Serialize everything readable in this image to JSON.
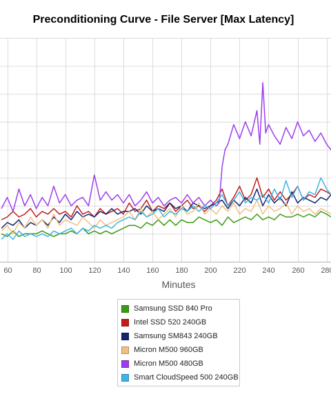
{
  "chart_data": {
    "type": "line",
    "title": "Preconditioning Curve - File Server [Max Latency]",
    "xlabel": "Minutes",
    "ylabel": "",
    "x_ticks": [
      60,
      80,
      100,
      120,
      140,
      160,
      180,
      200,
      220,
      240,
      260,
      280
    ],
    "xlim": [
      55,
      283
    ],
    "ylim": [
      0,
      8
    ],
    "grid": true,
    "legend_position": "bottom-center",
    "series": [
      {
        "name": "Samsung SSD 840 Pro",
        "color": "#3a9a10",
        "x": [
          56,
          60,
          64,
          68,
          72,
          76,
          80,
          84,
          88,
          92,
          96,
          100,
          104,
          108,
          112,
          116,
          120,
          124,
          128,
          132,
          136,
          140,
          144,
          148,
          152,
          156,
          160,
          164,
          168,
          172,
          176,
          180,
          184,
          188,
          192,
          196,
          200,
          204,
          208,
          212,
          216,
          220,
          224,
          228,
          232,
          236,
          240,
          244,
          248,
          252,
          256,
          260,
          264,
          268,
          272,
          276,
          280,
          283
        ],
        "values": [
          1.0,
          0.9,
          1.1,
          0.9,
          1.0,
          1.0,
          1.0,
          1.1,
          1.0,
          0.9,
          1.0,
          1.0,
          1.1,
          1.0,
          1.2,
          1.0,
          1.1,
          1.0,
          1.1,
          1.0,
          1.1,
          1.2,
          1.3,
          1.3,
          1.2,
          1.4,
          1.3,
          1.5,
          1.3,
          1.5,
          1.3,
          1.5,
          1.4,
          1.4,
          1.6,
          1.5,
          1.4,
          1.5,
          1.3,
          1.6,
          1.4,
          1.5,
          1.6,
          1.5,
          1.7,
          1.5,
          1.6,
          1.5,
          1.7,
          1.6,
          1.6,
          1.7,
          1.6,
          1.7,
          1.6,
          1.8,
          1.7,
          1.6
        ]
      },
      {
        "name": "Intel SSD 520 240GB",
        "color": "#c41c1c",
        "x": [
          56,
          60,
          64,
          68,
          72,
          76,
          80,
          84,
          88,
          92,
          96,
          100,
          104,
          108,
          112,
          116,
          120,
          124,
          128,
          132,
          136,
          140,
          144,
          148,
          152,
          156,
          160,
          164,
          168,
          172,
          176,
          180,
          184,
          188,
          192,
          196,
          200,
          204,
          208,
          212,
          216,
          220,
          224,
          228,
          232,
          236,
          240,
          244,
          248,
          252,
          256,
          260,
          264,
          268,
          272,
          276,
          280,
          283
        ],
        "values": [
          1.5,
          1.6,
          1.8,
          1.6,
          1.7,
          1.9,
          1.6,
          1.8,
          1.7,
          1.9,
          1.7,
          1.8,
          1.6,
          2.0,
          1.7,
          1.8,
          1.6,
          1.9,
          1.7,
          1.8,
          1.9,
          1.7,
          2.1,
          1.8,
          1.9,
          2.2,
          1.8,
          2.0,
          1.9,
          2.1,
          1.8,
          2.0,
          2.2,
          1.9,
          2.0,
          1.8,
          2.0,
          2.2,
          2.6,
          2.0,
          2.3,
          2.7,
          2.2,
          2.4,
          3.0,
          2.3,
          2.6,
          2.2,
          2.5,
          2.2,
          2.4,
          2.7,
          2.2,
          2.4,
          2.3,
          2.6,
          2.5,
          2.4
        ]
      },
      {
        "name": "Samsung SM843 240GB",
        "color": "#14246e",
        "x": [
          56,
          60,
          64,
          68,
          72,
          76,
          80,
          84,
          88,
          92,
          96,
          100,
          104,
          108,
          112,
          116,
          120,
          124,
          128,
          132,
          136,
          140,
          144,
          148,
          152,
          156,
          160,
          164,
          168,
          172,
          176,
          180,
          184,
          188,
          192,
          196,
          200,
          204,
          208,
          212,
          216,
          220,
          224,
          228,
          232,
          236,
          240,
          244,
          248,
          252,
          256,
          260,
          264,
          268,
          272,
          276,
          280,
          283
        ],
        "values": [
          1.2,
          1.4,
          1.3,
          1.5,
          1.2,
          1.4,
          1.3,
          1.5,
          1.3,
          1.6,
          1.4,
          1.7,
          1.5,
          1.8,
          1.6,
          1.7,
          1.6,
          1.8,
          1.7,
          1.9,
          1.7,
          1.8,
          1.8,
          1.9,
          1.7,
          2.0,
          1.8,
          1.9,
          1.8,
          2.1,
          1.9,
          2.0,
          1.8,
          2.1,
          2.0,
          1.9,
          2.0,
          2.1,
          2.2,
          1.9,
          2.2,
          2.0,
          2.3,
          2.1,
          2.6,
          2.0,
          2.4,
          2.1,
          2.3,
          2.0,
          2.5,
          2.1,
          2.3,
          2.2,
          2.1,
          2.3,
          2.2,
          2.4
        ]
      },
      {
        "name": "Micron M500 960GB",
        "color": "#f0c080",
        "x": [
          56,
          60,
          64,
          68,
          72,
          76,
          80,
          84,
          88,
          92,
          96,
          100,
          104,
          108,
          112,
          116,
          120,
          124,
          128,
          132,
          136,
          140,
          144,
          148,
          152,
          156,
          160,
          164,
          168,
          172,
          176,
          180,
          184,
          188,
          192,
          196,
          200,
          204,
          208,
          212,
          216,
          220,
          224,
          228,
          232,
          236,
          240,
          244,
          248,
          252,
          256,
          260,
          264,
          268,
          272,
          276,
          280,
          283
        ],
        "values": [
          1.1,
          1.3,
          1.0,
          1.4,
          1.2,
          1.6,
          1.3,
          1.5,
          1.2,
          1.7,
          1.3,
          1.5,
          1.4,
          1.3,
          1.6,
          1.4,
          1.2,
          1.5,
          1.3,
          1.4,
          1.5,
          1.6,
          1.8,
          1.5,
          1.9,
          1.6,
          1.8,
          1.5,
          1.7,
          1.9,
          1.6,
          2.0,
          1.7,
          1.8,
          2.1,
          1.7,
          1.9,
          1.7,
          2.0,
          1.8,
          2.1,
          1.7,
          1.9,
          1.8,
          2.2,
          1.7,
          2.0,
          1.8,
          1.9,
          2.1,
          1.7,
          2.0,
          1.8,
          1.9,
          1.7,
          1.9,
          1.8,
          1.7
        ]
      },
      {
        "name": "Micron M500 480GB",
        "color": "#9b3ded",
        "x": [
          56,
          60,
          64,
          68,
          72,
          76,
          80,
          84,
          88,
          92,
          96,
          100,
          104,
          108,
          112,
          116,
          120,
          124,
          128,
          132,
          136,
          140,
          144,
          148,
          152,
          156,
          160,
          164,
          168,
          172,
          176,
          180,
          184,
          188,
          192,
          196,
          200,
          204,
          206,
          208,
          210,
          212,
          216,
          220,
          224,
          228,
          232,
          234,
          236,
          238,
          240,
          244,
          248,
          252,
          256,
          260,
          264,
          268,
          272,
          276,
          280,
          283
        ],
        "values": [
          1.9,
          2.3,
          1.8,
          2.6,
          2.0,
          2.4,
          1.9,
          2.3,
          2.0,
          2.7,
          2.1,
          2.4,
          2.0,
          2.2,
          2.3,
          2.0,
          3.1,
          2.2,
          2.5,
          2.2,
          2.4,
          2.1,
          2.4,
          2.0,
          2.2,
          2.5,
          2.1,
          2.3,
          2.0,
          2.2,
          2.3,
          2.1,
          2.4,
          2.1,
          2.3,
          2.0,
          2.2,
          2.0,
          2.1,
          3.4,
          4.0,
          4.2,
          4.9,
          4.4,
          5.0,
          4.5,
          5.4,
          4.2,
          6.4,
          4.6,
          4.9,
          4.5,
          4.2,
          4.8,
          4.4,
          5.0,
          4.5,
          4.7,
          4.3,
          4.6,
          4.2,
          4.0
        ]
      },
      {
        "name": "Smart CloudSpeed 500 240GB",
        "color": "#3eb3e8",
        "x": [
          56,
          60,
          64,
          68,
          72,
          76,
          80,
          84,
          88,
          92,
          96,
          100,
          104,
          108,
          112,
          116,
          120,
          124,
          128,
          132,
          136,
          140,
          144,
          148,
          152,
          156,
          160,
          164,
          168,
          172,
          176,
          180,
          184,
          188,
          192,
          196,
          200,
          204,
          208,
          212,
          216,
          220,
          224,
          228,
          232,
          236,
          240,
          244,
          248,
          252,
          256,
          260,
          264,
          268,
          272,
          276,
          280,
          283
        ],
        "values": [
          0.8,
          1.0,
          0.8,
          1.1,
          0.9,
          1.0,
          0.9,
          1.0,
          0.9,
          1.1,
          1.0,
          1.1,
          1.2,
          1.0,
          1.2,
          1.1,
          1.3,
          1.2,
          1.3,
          1.2,
          1.4,
          1.5,
          1.6,
          1.5,
          1.8,
          1.6,
          1.7,
          1.9,
          1.6,
          1.8,
          1.7,
          1.9,
          1.8,
          2.0,
          1.8,
          2.0,
          1.9,
          2.1,
          2.4,
          2.0,
          2.2,
          2.5,
          2.1,
          2.3,
          2.2,
          2.4,
          2.1,
          2.6,
          2.2,
          2.9,
          2.3,
          2.7,
          2.2,
          2.5,
          2.4,
          3.0,
          2.6,
          2.4
        ]
      }
    ]
  }
}
